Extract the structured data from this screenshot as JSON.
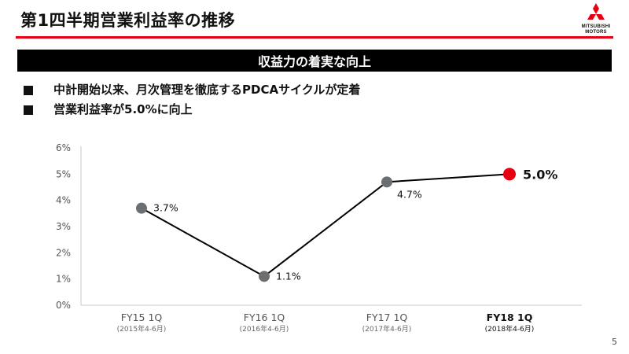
{
  "header": {
    "title": "第1四半期営業利益率の推移",
    "logo_text_line1": "MITSUBISHI",
    "logo_text_line2": "MOTORS"
  },
  "banner": {
    "text": "収益力の着実な向上"
  },
  "bullets": [
    {
      "text": "中計開始以来、月次管理を徹底するPDCAサイクルが定着"
    },
    {
      "text": "営業利益率が5.0%に向上"
    }
  ],
  "colors": {
    "accent_red": "#e60012",
    "point_gray": "#6b6e73",
    "line": "#000000",
    "banner_bg": "#000000"
  },
  "chart_data": {
    "type": "line",
    "categories": [
      "FY15 1Q",
      "FY16 1Q",
      "FY17 1Q",
      "FY18 1Q"
    ],
    "sub_labels": [
      "(2015年4-6月)",
      "(2016年4-6月)",
      "(2017年4-6月)",
      "(2018年4-6月)"
    ],
    "values": [
      3.7,
      1.1,
      4.7,
      5.0
    ],
    "data_labels": [
      "3.7%",
      "1.1%",
      "4.7%",
      "5.0%"
    ],
    "highlight_index": 3,
    "ylim": [
      0,
      6
    ],
    "yticks": [
      "0%",
      "1%",
      "2%",
      "3%",
      "4%",
      "5%",
      "6%"
    ],
    "grid": false
  },
  "footer": {
    "page_number": "5"
  }
}
